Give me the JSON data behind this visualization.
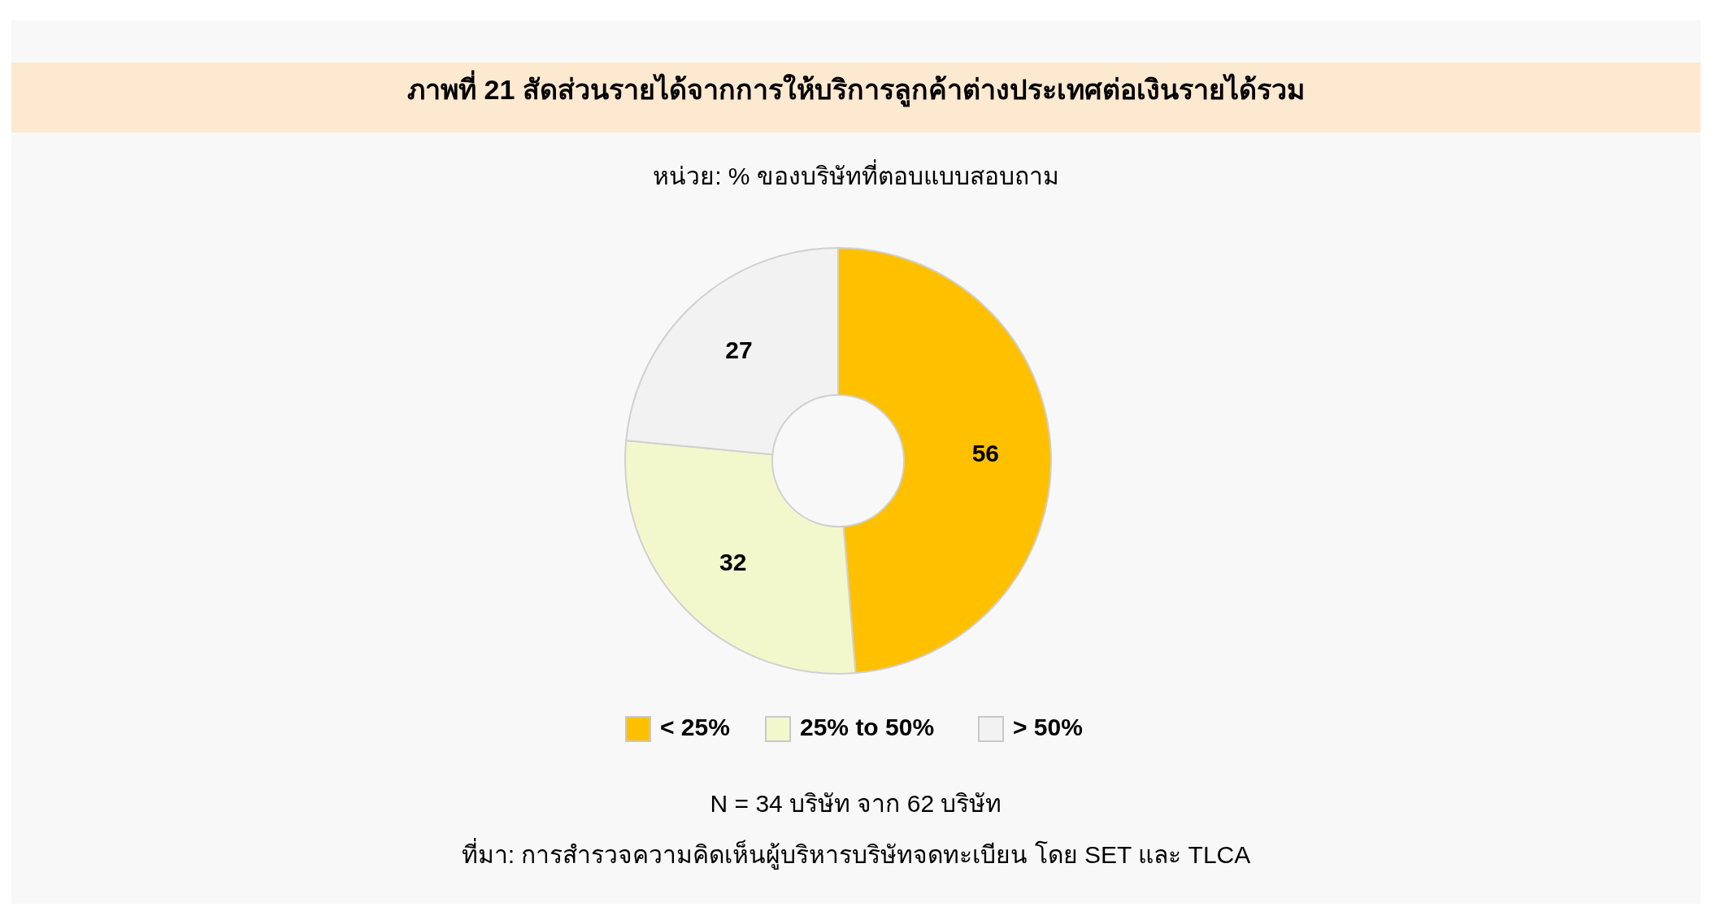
{
  "chart_data": {
    "type": "donut",
    "title": "ภาพที่ 21 สัดส่วนรายได้จากการให้บริการลูกค้าต่างประเทศต่อเงินรายได้รวม",
    "subtitle": "หน่วย: % ของบริษัทที่ตอบแบบสอบถาม",
    "categories": [
      "< 25%",
      "25% to 50%",
      "> 50%"
    ],
    "values": [
      56,
      32,
      27
    ],
    "colors": [
      "#ffc000",
      "#f2f8cc",
      "#f2f2f2"
    ],
    "data_labels": true,
    "legend": "bottom",
    "annotations": [
      "N = 34 บริษัท จาก 62 บริษัท",
      "ที่มา: การสำรวจความคิดเห็นผู้บริหารบริษัทจดทะเบียน โดย SET และ TLCA"
    ]
  }
}
